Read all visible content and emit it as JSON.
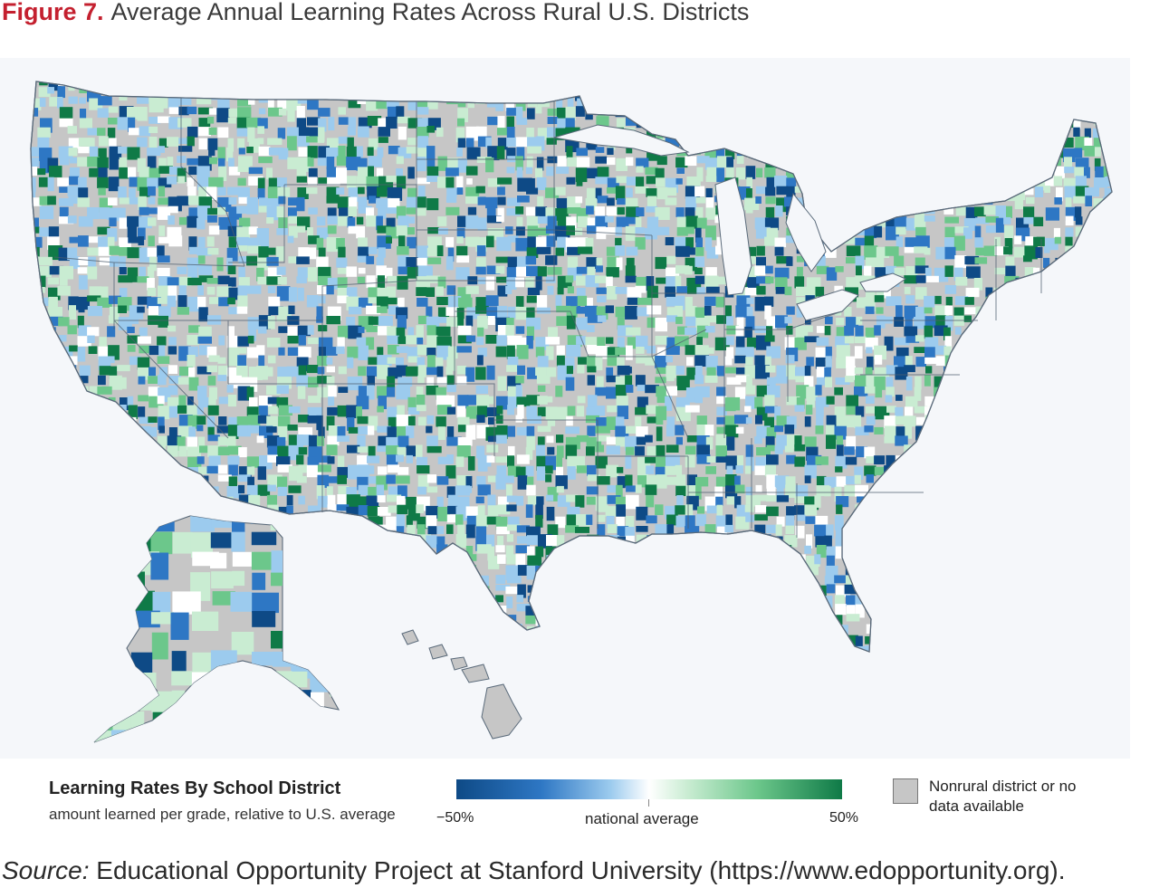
{
  "figure": {
    "number": "Figure 7.",
    "title": "Average Annual Learning Rates Across Rural U.S. Districts"
  },
  "map": {
    "colors": {
      "no_data": "#c6c6c6",
      "background": "#f5f7fa",
      "low": "#0e4a86",
      "mid_low": "#2e77c4",
      "light_low": "#9ccbee",
      "average": "#ffffff",
      "light_high": "#c9ecd2",
      "mid_high": "#6cc78b",
      "high": "#0f7a47"
    }
  },
  "legend": {
    "title": "Learning Rates By School District",
    "subtitle": "amount learned per grade, relative to U.S. average",
    "scale_min": "−50%",
    "scale_mid": "national average",
    "scale_max": "50%",
    "no_data_label": "Nonrural district or no data available"
  },
  "source": {
    "label": "Source:",
    "text": "Educational Opportunity Project at Stanford University (https://www.edopportunity.org)."
  }
}
